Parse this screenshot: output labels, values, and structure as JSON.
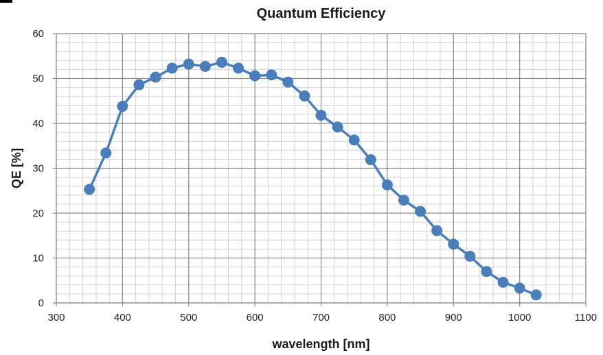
{
  "chart_data": {
    "type": "line",
    "title": "Quantum Efficiency",
    "xlabel": "wavelength [nm]",
    "ylabel": "QE [%]",
    "xlim": [
      300,
      1100
    ],
    "ylim": [
      0,
      60
    ],
    "xticks": [
      300,
      400,
      500,
      600,
      700,
      800,
      900,
      1000,
      1100
    ],
    "yticks": [
      0,
      10,
      20,
      30,
      40,
      50,
      60
    ],
    "grid": true,
    "minor_grid": {
      "x_step": 20,
      "y_step": 2
    },
    "series": [
      {
        "color": "#4a7ebb",
        "marker": "circle",
        "x": [
          350,
          375,
          400,
          425,
          450,
          475,
          500,
          525,
          550,
          575,
          600,
          625,
          650,
          675,
          700,
          725,
          750,
          775,
          800,
          825,
          850,
          875,
          900,
          925,
          950,
          975,
          1000,
          1025
        ],
        "y": [
          25.3,
          33.4,
          43.8,
          48.6,
          50.3,
          52.3,
          53.2,
          52.7,
          53.6,
          52.3,
          50.6,
          50.8,
          49.2,
          46.1,
          41.8,
          39.2,
          36.3,
          31.9,
          26.3,
          22.9,
          20.4,
          16.1,
          13.1,
          10.4,
          7.0,
          4.6,
          3.3,
          1.8
        ]
      }
    ]
  }
}
